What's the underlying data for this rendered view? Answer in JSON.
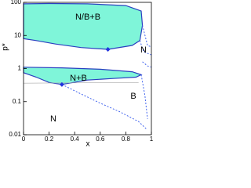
{
  "chart_data": {
    "type": "phase",
    "x_label": "x",
    "y_label": "p*",
    "xlim": [
      0,
      1
    ],
    "ylim": [
      0.01,
      100
    ],
    "log_y": true,
    "xticks": [
      0,
      0.2,
      0.4,
      0.6,
      0.8,
      1
    ],
    "yticks": [
      0.01,
      0.1,
      1,
      10,
      100
    ],
    "annotations": [
      "N/B+B",
      "N",
      "N+B",
      "B",
      "N"
    ],
    "series": [
      {
        "style": "fill",
        "color": "#7ff5d9",
        "line_color": "#2a3fc0",
        "x": [
          0,
          0.2,
          0.5,
          0.8,
          0.92,
          0.93,
          0.91,
          0.85,
          0.66,
          0.45,
          0.25,
          0.1,
          0
        ],
        "values": [
          90,
          92,
          90,
          80,
          55,
          20,
          7,
          5,
          3.8,
          4.3,
          5.5,
          7,
          8
        ]
      },
      {
        "style": "fill",
        "color": "#7ff5d9",
        "line_color": "#2a3fc0",
        "x": [
          0,
          0.3,
          0.6,
          0.85,
          0.92,
          0.88,
          0.7,
          0.5,
          0.3,
          0.2,
          0.1,
          0
        ],
        "values": [
          1.1,
          1.05,
          0.95,
          0.8,
          0.65,
          0.55,
          0.5,
          0.45,
          0.33,
          0.38,
          0.55,
          0.75
        ]
      },
      {
        "style": "thin",
        "color": "#aaaaaa",
        "x": [
          0,
          0.9
        ],
        "values": [
          0.36,
          0.38
        ]
      },
      {
        "style": "dashed",
        "color": "#4466ee",
        "x": [
          0.3,
          0.45,
          0.6,
          0.75,
          0.9,
          0.96
        ],
        "values": [
          0.33,
          0.17,
          0.09,
          0.05,
          0.025,
          0.015
        ]
      },
      {
        "style": "dashed",
        "color": "#4466ee",
        "x": [
          0.91,
          0.94,
          1
        ],
        "values": [
          7,
          3.2,
          2.6
        ]
      },
      {
        "style": "dashed",
        "color": "#4466ee",
        "x": [
          0.93,
          0.97,
          1
        ],
        "values": [
          20,
          5,
          4.5
        ]
      },
      {
        "style": "dashed",
        "color": "#4466ee",
        "x": [
          0.92,
          0.95,
          0.97
        ],
        "values": [
          0.65,
          0.15,
          0.03
        ]
      },
      {
        "style": "dashed",
        "color": "#4466ee",
        "x": [
          0.93,
          0.97,
          1
        ],
        "values": [
          1.6,
          1.2,
          1.1
        ]
      }
    ],
    "markers": {
      "color": "#2233dd",
      "x": [
        0.66,
        0.3
      ],
      "values": [
        3.8,
        0.33
      ]
    }
  }
}
